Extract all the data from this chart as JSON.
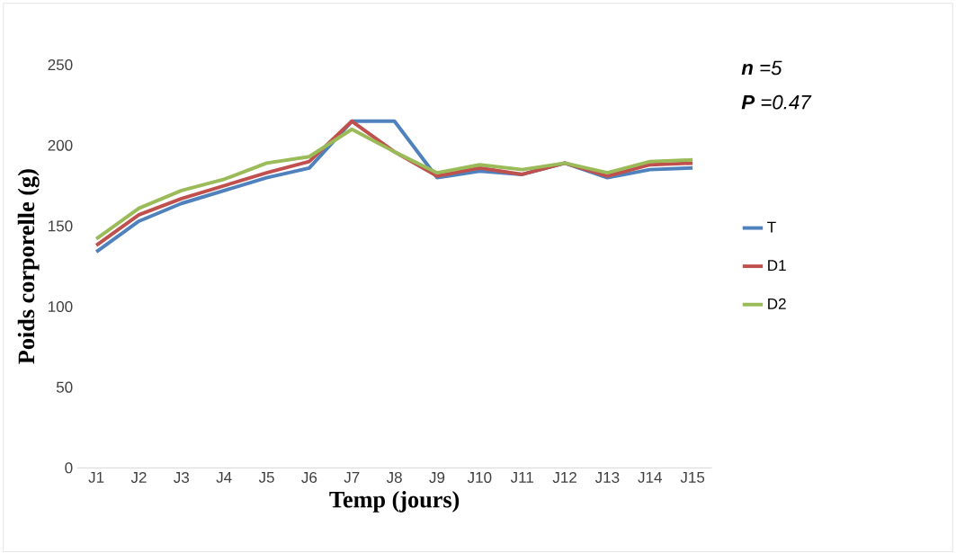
{
  "chart_data": {
    "type": "line",
    "xlabel": "Temp (jours)",
    "ylabel": "Poids corporelle (g)",
    "categories": [
      "J1",
      "J2",
      "J3",
      "J4",
      "J5",
      "J6",
      "J7",
      "J8",
      "J9",
      "J10",
      "J11",
      "J12",
      "J13",
      "J14",
      "J15"
    ],
    "series": [
      {
        "name": "T",
        "color": "#4f81bd",
        "values": [
          134,
          153,
          164,
          172,
          180,
          186,
          215,
          215,
          180,
          184,
          182,
          189,
          180,
          185,
          186
        ]
      },
      {
        "name": "D1",
        "color": "#c0504d",
        "values": [
          138,
          157,
          167,
          175,
          183,
          190,
          215,
          196,
          181,
          186,
          182,
          189,
          181,
          188,
          189
        ]
      },
      {
        "name": "D2",
        "color": "#9bbb59",
        "values": [
          142,
          161,
          172,
          179,
          189,
          193,
          210,
          196,
          183,
          188,
          185,
          189,
          183,
          190,
          191
        ]
      }
    ],
    "ylim": [
      0,
      250
    ],
    "yticks": [
      0,
      50,
      100,
      150,
      200,
      250
    ],
    "grid": false,
    "legend": "right",
    "marker": "none",
    "line_style": "solid",
    "annotations": [
      "**n** =5",
      "**P** =0.47"
    ]
  }
}
